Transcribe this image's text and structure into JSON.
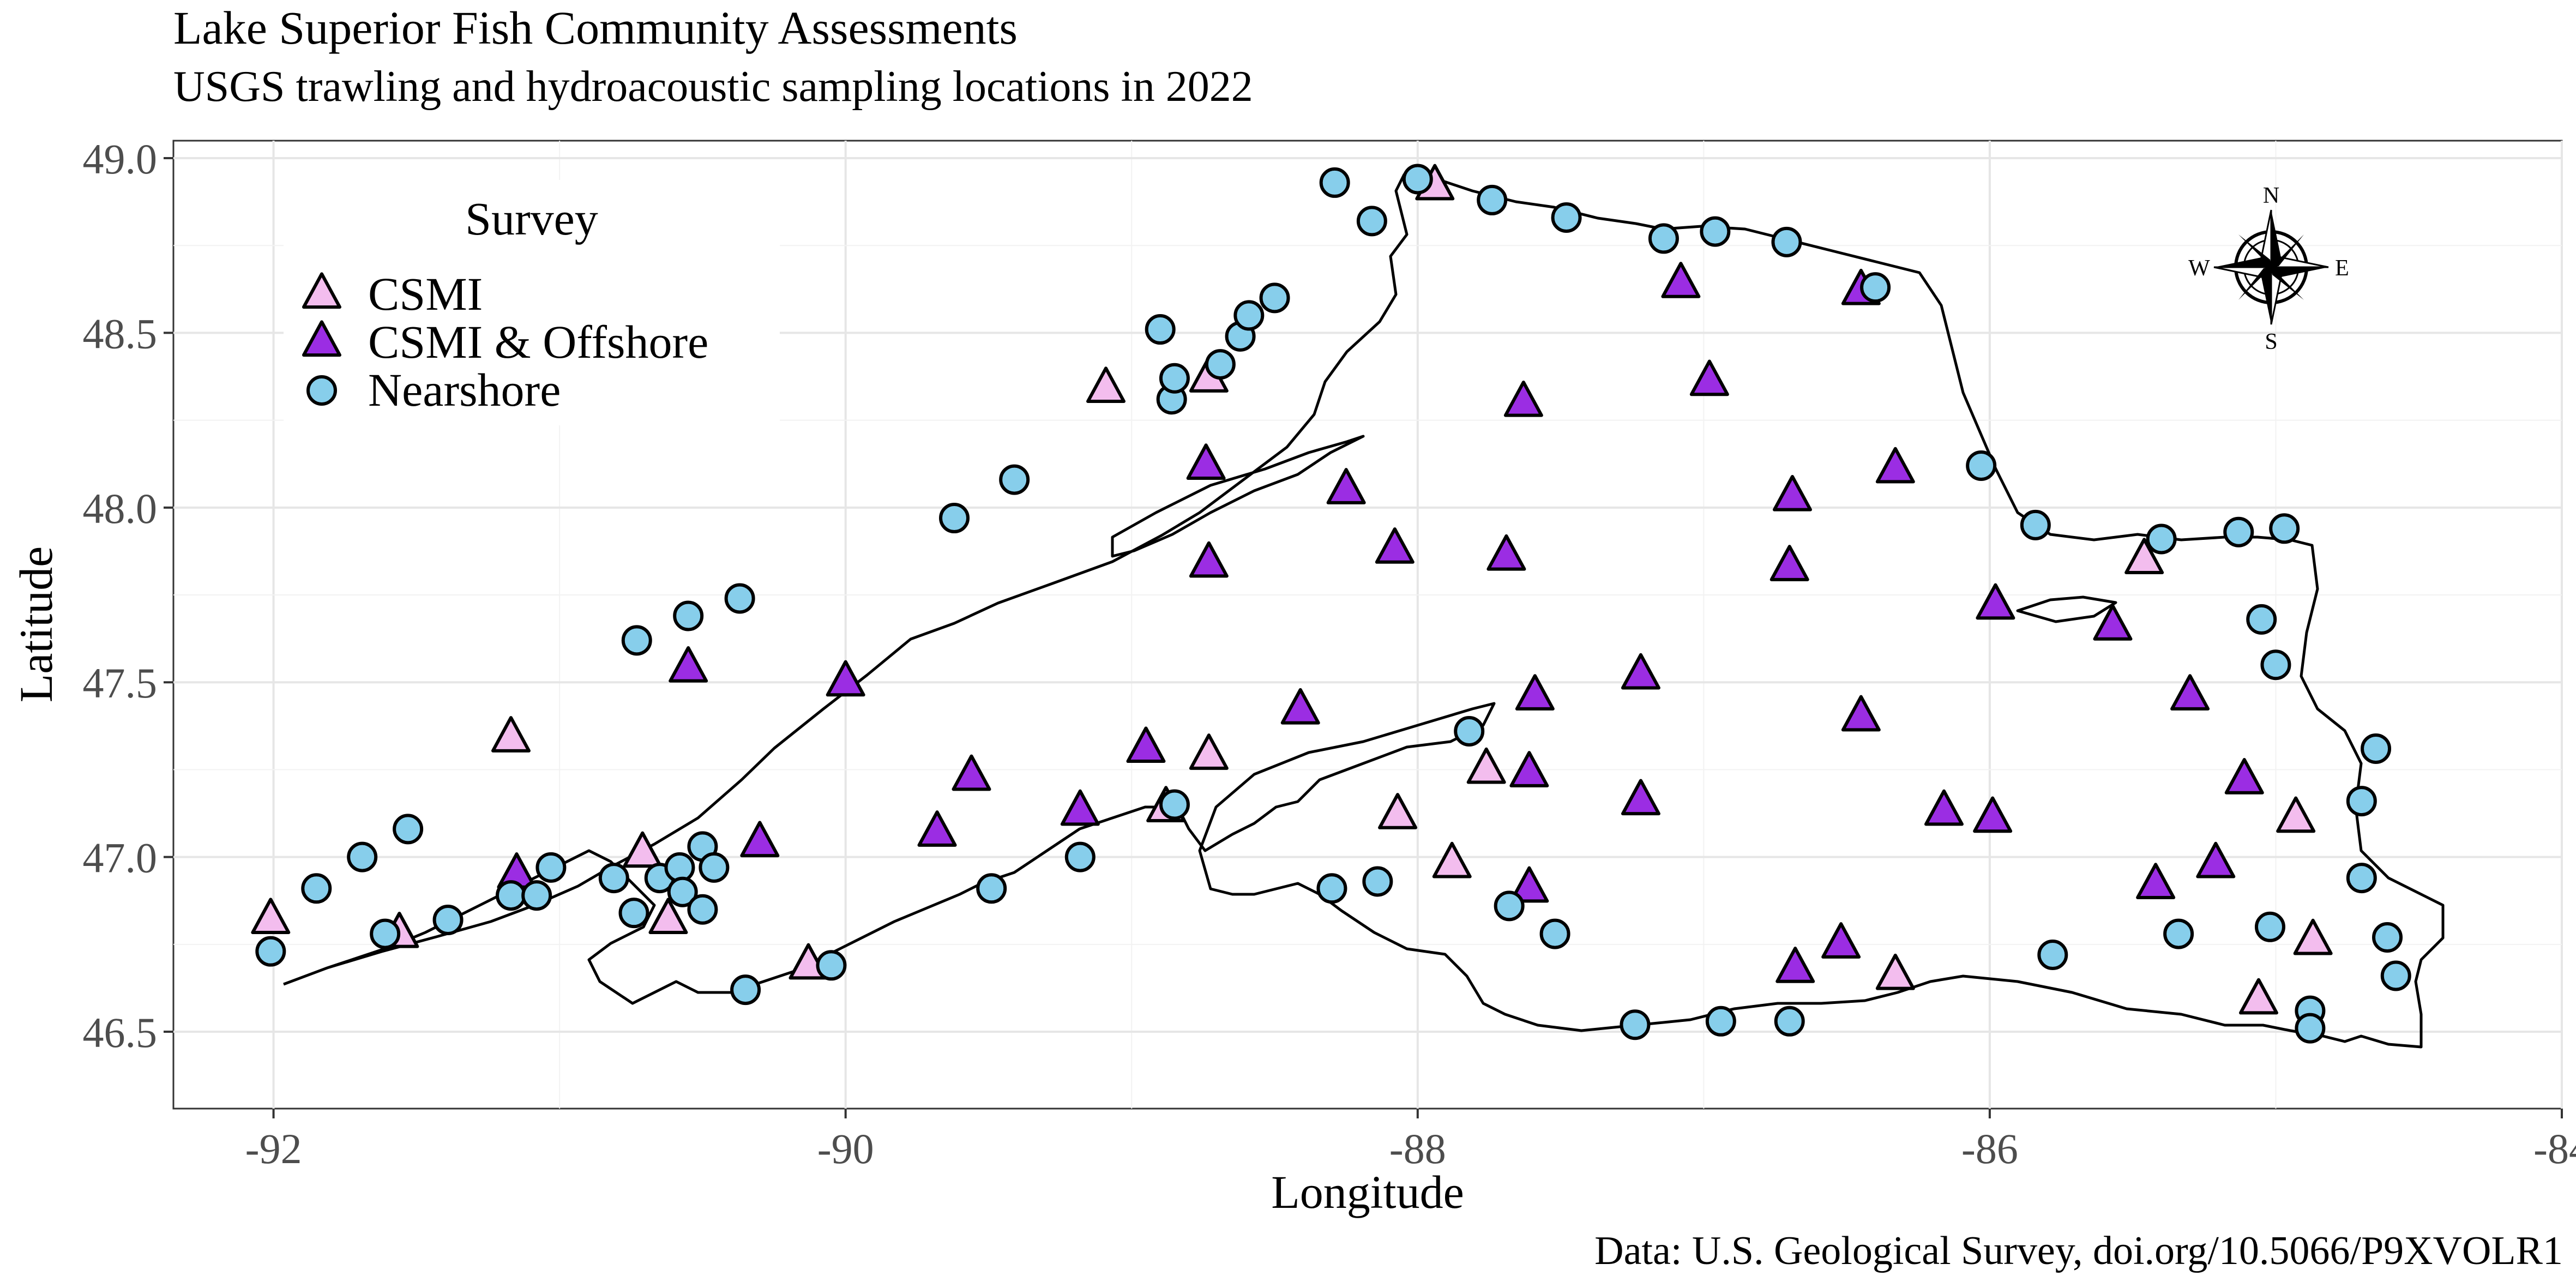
{
  "title": "Lake Superior Fish Community Assessments",
  "subtitle": "USGS trawling and hydroacoustic sampling locations in 2022",
  "caption": "Data: U.S. Geological Survey, doi.org/10.5066/P9XVOLR1",
  "chart_data": {
    "type": "scatter",
    "xlabel": "Longitude",
    "ylabel": "Latitude",
    "xlim": [
      -92.35,
      -84.0
    ],
    "ylim": [
      46.28,
      49.05
    ],
    "x_ticks": [
      {
        "value": -92,
        "label": "-92"
      },
      {
        "value": -90,
        "label": "-90"
      },
      {
        "value": -88,
        "label": "-88"
      },
      {
        "value": -86,
        "label": "-86"
      },
      {
        "value": -84,
        "label": "-84"
      }
    ],
    "y_ticks": [
      {
        "value": 46.5,
        "label": "46.5"
      },
      {
        "value": 47.0,
        "label": "47.0"
      },
      {
        "value": 47.5,
        "label": "47.5"
      },
      {
        "value": 48.0,
        "label": "48.0"
      },
      {
        "value": 48.5,
        "label": "48.5"
      },
      {
        "value": 49.0,
        "label": "49.0"
      }
    ],
    "grid": true,
    "legend": {
      "title": "Survey",
      "placement": "top-left inside",
      "entries": [
        {
          "label": "CSMI",
          "shape": "triangle",
          "color": "#F3BDEE"
        },
        {
          "label": "CSMI & Offshore",
          "shape": "triangle",
          "color": "#9B2DE3"
        },
        {
          "label": "Nearshore",
          "shape": "circle",
          "color": "#87CEEB"
        }
      ]
    },
    "compass": {
      "N": "N",
      "S": "S",
      "E": "E",
      "W": "W"
    },
    "series": [
      {
        "name": "CSMI",
        "shape": "triangle",
        "color": "#F3BDEE",
        "points": [
          [
            -92.01,
            46.82
          ],
          [
            -91.56,
            46.78
          ],
          [
            -91.17,
            47.34
          ],
          [
            -90.71,
            47.01
          ],
          [
            -90.62,
            46.82
          ],
          [
            -90.13,
            46.69
          ],
          [
            -89.09,
            48.34
          ],
          [
            -88.73,
            48.37
          ],
          [
            -88.88,
            47.14
          ],
          [
            -88.73,
            47.29
          ],
          [
            -88.07,
            47.12
          ],
          [
            -87.94,
            48.92
          ],
          [
            -87.88,
            46.98
          ],
          [
            -87.76,
            47.25
          ],
          [
            -86.33,
            46.66
          ],
          [
            -85.46,
            47.85
          ],
          [
            -85.06,
            46.59
          ],
          [
            -84.93,
            47.11
          ],
          [
            -84.87,
            46.76
          ]
        ]
      },
      {
        "name": "CSMI & Offshore",
        "shape": "triangle",
        "color": "#9B2DE3",
        "points": [
          [
            -91.15,
            46.95
          ],
          [
            -90.55,
            47.54
          ],
          [
            -90.3,
            47.04
          ],
          [
            -90.0,
            47.5
          ],
          [
            -89.68,
            47.07
          ],
          [
            -89.56,
            47.23
          ],
          [
            -89.18,
            47.13
          ],
          [
            -88.95,
            47.31
          ],
          [
            -88.74,
            48.12
          ],
          [
            -88.73,
            47.84
          ],
          [
            -88.41,
            47.42
          ],
          [
            -88.25,
            48.05
          ],
          [
            -88.08,
            47.88
          ],
          [
            -87.69,
            47.86
          ],
          [
            -87.63,
            48.3
          ],
          [
            -87.59,
            47.46
          ],
          [
            -87.61,
            47.24
          ],
          [
            -87.61,
            46.91
          ],
          [
            -87.22,
            47.52
          ],
          [
            -87.22,
            47.16
          ],
          [
            -87.08,
            48.64
          ],
          [
            -86.98,
            48.36
          ],
          [
            -86.69,
            48.03
          ],
          [
            -86.7,
            47.83
          ],
          [
            -86.68,
            46.68
          ],
          [
            -86.52,
            46.75
          ],
          [
            -86.45,
            47.4
          ],
          [
            -86.45,
            48.62
          ],
          [
            -86.33,
            48.11
          ],
          [
            -86.16,
            47.13
          ],
          [
            -85.98,
            47.72
          ],
          [
            -85.99,
            47.11
          ],
          [
            -85.57,
            47.66
          ],
          [
            -85.42,
            46.92
          ],
          [
            -85.3,
            47.46
          ],
          [
            -85.21,
            46.98
          ],
          [
            -85.11,
            47.22
          ]
        ]
      },
      {
        "name": "Nearshore",
        "shape": "circle",
        "color": "#87CEEB",
        "points": [
          [
            -92.01,
            46.73
          ],
          [
            -91.85,
            46.91
          ],
          [
            -91.69,
            47.0
          ],
          [
            -91.61,
            46.78
          ],
          [
            -91.53,
            47.08
          ],
          [
            -91.39,
            46.82
          ],
          [
            -91.17,
            46.89
          ],
          [
            -91.08,
            46.89
          ],
          [
            -91.03,
            46.97
          ],
          [
            -90.81,
            46.94
          ],
          [
            -90.74,
            46.84
          ],
          [
            -90.65,
            46.94
          ],
          [
            -90.58,
            46.97
          ],
          [
            -90.57,
            46.9
          ],
          [
            -90.5,
            46.85
          ],
          [
            -90.5,
            47.03
          ],
          [
            -90.46,
            46.97
          ],
          [
            -90.73,
            47.62
          ],
          [
            -90.55,
            47.69
          ],
          [
            -90.37,
            47.74
          ],
          [
            -89.62,
            47.97
          ],
          [
            -89.41,
            48.08
          ],
          [
            -89.49,
            46.91
          ],
          [
            -90.35,
            46.62
          ],
          [
            -90.05,
            46.69
          ],
          [
            -89.18,
            47.0
          ],
          [
            -88.85,
            47.15
          ],
          [
            -88.86,
            48.31
          ],
          [
            -88.85,
            48.37
          ],
          [
            -88.9,
            48.51
          ],
          [
            -88.69,
            48.41
          ],
          [
            -88.62,
            48.49
          ],
          [
            -88.59,
            48.55
          ],
          [
            -88.5,
            48.6
          ],
          [
            -88.29,
            48.93
          ],
          [
            -88.16,
            48.82
          ],
          [
            -88.0,
            48.94
          ],
          [
            -87.74,
            48.88
          ],
          [
            -87.48,
            48.83
          ],
          [
            -87.14,
            48.77
          ],
          [
            -86.96,
            48.79
          ],
          [
            -86.71,
            48.76
          ],
          [
            -86.4,
            48.63
          ],
          [
            -86.03,
            48.12
          ],
          [
            -85.84,
            47.95
          ],
          [
            -85.4,
            47.91
          ],
          [
            -85.13,
            47.93
          ],
          [
            -84.97,
            47.94
          ],
          [
            -85.05,
            47.68
          ],
          [
            -85.0,
            47.55
          ],
          [
            -84.65,
            47.31
          ],
          [
            -84.7,
            47.16
          ],
          [
            -84.7,
            46.94
          ],
          [
            -84.61,
            46.77
          ],
          [
            -84.58,
            46.66
          ],
          [
            -84.88,
            46.56
          ],
          [
            -84.88,
            46.51
          ],
          [
            -85.02,
            46.8
          ],
          [
            -85.34,
            46.78
          ],
          [
            -85.78,
            46.72
          ],
          [
            -86.94,
            46.53
          ],
          [
            -86.7,
            46.53
          ],
          [
            -87.24,
            46.52
          ],
          [
            -87.52,
            46.78
          ],
          [
            -87.68,
            46.86
          ],
          [
            -87.82,
            47.36
          ],
          [
            -88.14,
            46.93
          ],
          [
            -88.3,
            46.91
          ]
        ]
      }
    ]
  }
}
